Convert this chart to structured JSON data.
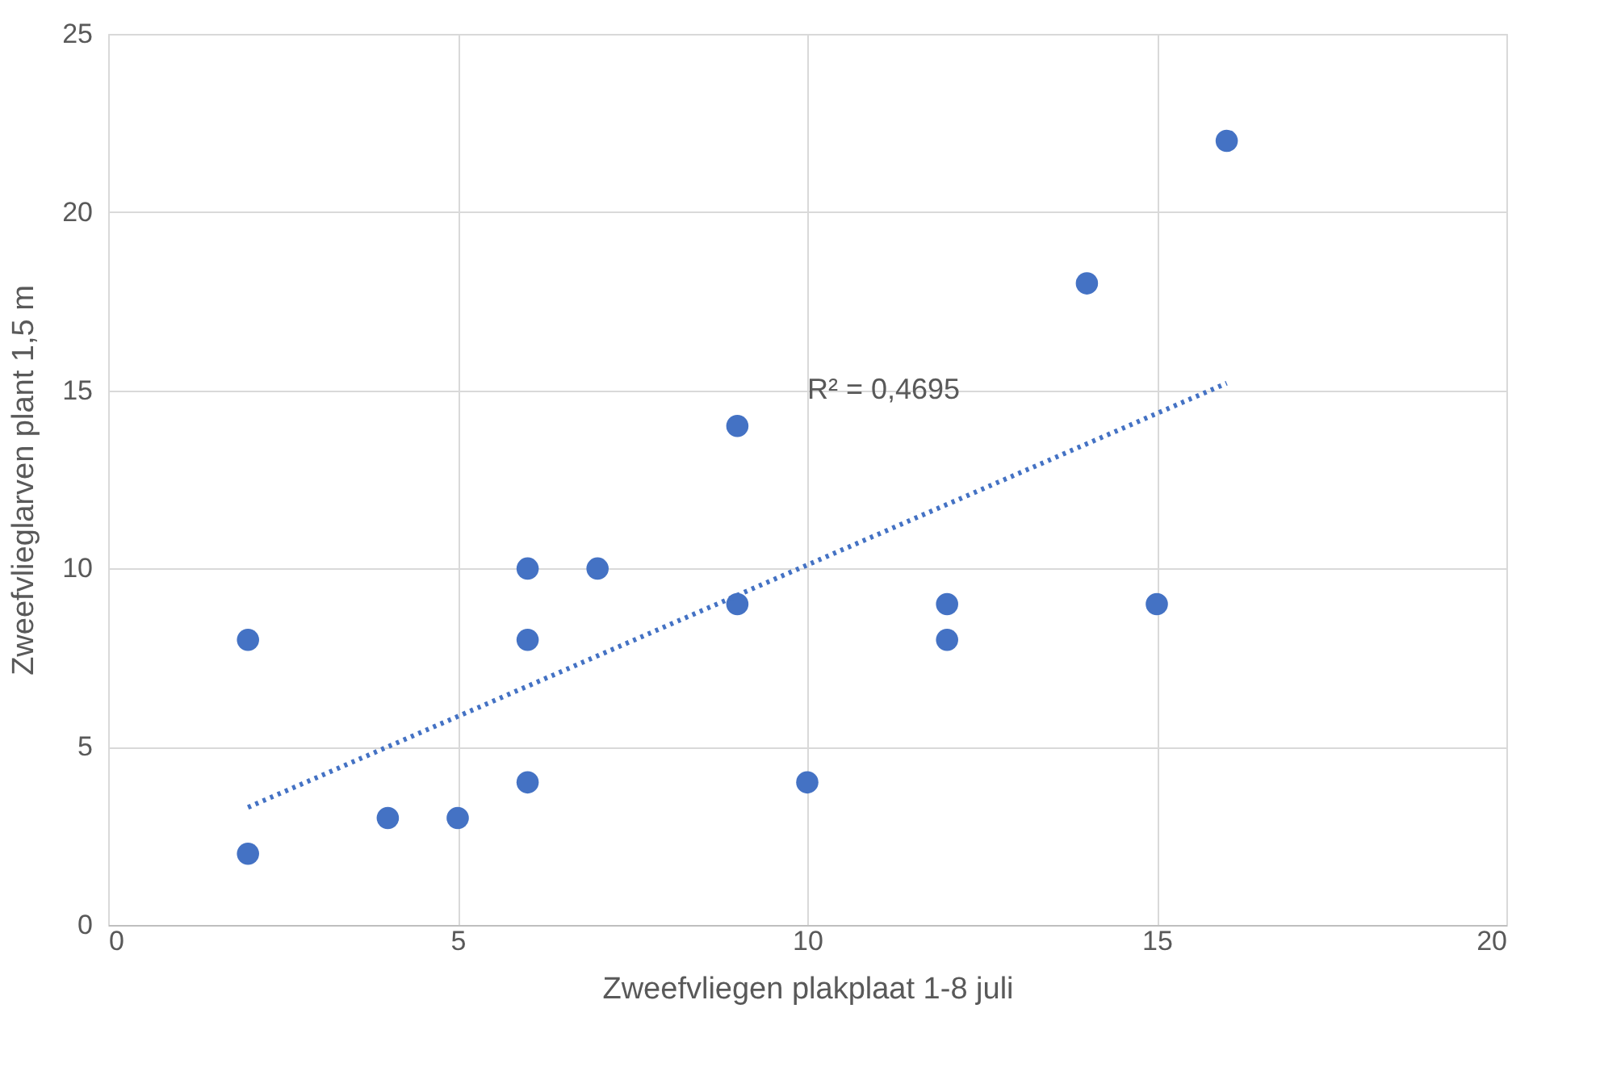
{
  "chart_data": {
    "type": "scatter",
    "xlabel": "Zweefvliegen plakplaat 1-8 juli",
    "ylabel": "Zweefvlieglarven plant 1,5 m",
    "xlim": [
      0,
      20
    ],
    "xticks": [
      0,
      5,
      10,
      15,
      20
    ],
    "ylim": [
      0,
      25
    ],
    "yticks": [
      0,
      5,
      10,
      15,
      20,
      25
    ],
    "grid": true,
    "series": [
      {
        "color": "#4472c4",
        "marker": "circle",
        "x": [
          2,
          2,
          4,
          5,
          6,
          6,
          6,
          7,
          9,
          9,
          10,
          12,
          12,
          14,
          15,
          16
        ],
        "values": [
          8,
          2,
          3,
          3,
          10,
          8,
          4,
          10,
          14,
          9,
          4,
          9,
          8,
          18,
          9,
          22
        ]
      },
      {
        "type": "line",
        "color": "#4472c4",
        "line_style": "dotted",
        "x": [
          2,
          16
        ],
        "values": [
          3.3,
          15.2
        ]
      }
    ],
    "annotations": [
      "R² = 0,4695"
    ]
  }
}
